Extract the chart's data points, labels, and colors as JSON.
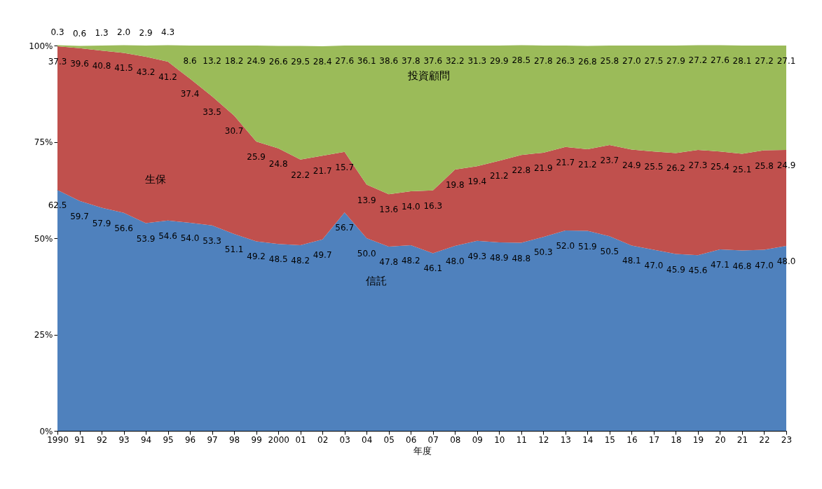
{
  "chart_data": {
    "type": "area",
    "stacked": true,
    "xlabel": "年度",
    "categories": [
      "1990",
      "91",
      "92",
      "93",
      "94",
      "95",
      "96",
      "97",
      "98",
      "99",
      "2000",
      "01",
      "02",
      "03",
      "04",
      "05",
      "06",
      "07",
      "08",
      "09",
      "10",
      "11",
      "12",
      "13",
      "14",
      "15",
      "16",
      "17",
      "18",
      "19",
      "20",
      "21",
      "22",
      "23"
    ],
    "series": [
      {
        "name": "信託",
        "color": "#4f81bd",
        "values": [
          62.5,
          59.7,
          57.9,
          56.6,
          53.9,
          54.6,
          54.0,
          53.3,
          51.1,
          49.2,
          48.5,
          48.2,
          49.7,
          56.7,
          50.0,
          47.8,
          48.2,
          46.1,
          48.0,
          49.3,
          48.9,
          48.8,
          50.3,
          52.0,
          51.9,
          50.5,
          48.1,
          47.0,
          45.9,
          45.6,
          47.1,
          46.8,
          47.0,
          48.0
        ],
        "value_labels": [
          "62.5",
          "59.7",
          "57.9",
          "56.6",
          "53.9",
          "54.6",
          "54.0",
          "53.3",
          "51.1",
          "49.2",
          "48.5",
          "48.2",
          "49.7",
          "56.7",
          "50.0",
          "47.8",
          "48.2",
          "46.1",
          "48.0",
          "49.3",
          "48.9",
          "48.8",
          "50.3",
          "52.0",
          "51.9",
          "50.5",
          "48.1",
          "47.0",
          "45.9",
          "45.6",
          "47.1",
          "46.8",
          "47.0",
          "48.0"
        ]
      },
      {
        "name": "生保",
        "color": "#c0504d",
        "values": [
          37.3,
          39.6,
          40.8,
          41.5,
          43.2,
          41.2,
          37.4,
          33.5,
          30.7,
          25.9,
          24.8,
          22.2,
          21.7,
          15.7,
          13.9,
          13.6,
          14.0,
          16.3,
          19.8,
          19.4,
          21.2,
          22.8,
          21.9,
          21.7,
          21.2,
          23.7,
          24.9,
          25.5,
          26.2,
          27.3,
          25.4,
          25.1,
          25.8,
          24.9
        ],
        "value_labels": [
          "37.3",
          "39.6",
          "40.8",
          "41.5",
          "43.2",
          "41.2",
          "37.4",
          "33.5",
          "30.7",
          "25.9",
          "24.8",
          "22.2",
          "21.7",
          "15.7",
          "13.9",
          "13.6",
          "14.0",
          "16.3",
          "19.8",
          "19.4",
          "21.2",
          "22.8",
          "21.9",
          "21.7",
          "21.2",
          "23.7",
          "24.9",
          "25.5",
          "26.2",
          "27.3",
          "25.4",
          "25.1",
          "25.8",
          "24.9"
        ]
      },
      {
        "name": "投資顧問",
        "color": "#9bbb59",
        "values": [
          0.3,
          0.6,
          1.3,
          2.0,
          2.9,
          4.3,
          8.6,
          13.2,
          18.2,
          24.9,
          26.6,
          29.5,
          28.4,
          27.6,
          36.1,
          38.6,
          37.8,
          37.6,
          32.2,
          31.3,
          29.9,
          28.5,
          27.8,
          26.3,
          26.8,
          25.8,
          27.0,
          27.5,
          27.9,
          27.2,
          27.6,
          28.1,
          27.2,
          27.1
        ],
        "value_labels": [
          "0.3",
          "0.6",
          "1.3",
          "2.0",
          "2.9",
          "4.3",
          "8.6",
          "13.2",
          "18.2",
          "24.9",
          "26.6",
          "29.5",
          "28.4",
          "27.6",
          "36.1",
          "38.6",
          "37.8",
          "37.6",
          "32.2",
          "31.3",
          "29.9",
          "28.5",
          "27.8",
          "26.3",
          "26.8",
          "25.8",
          "27.0",
          "27.5",
          "27.9",
          "27.2",
          "27.6",
          "28.1",
          "27.2",
          "27.1"
        ]
      }
    ],
    "ylim": [
      0,
      100
    ],
    "yticks": [
      {
        "value": 0,
        "label": "0%"
      },
      {
        "value": 25,
        "label": "25%"
      },
      {
        "value": 50,
        "label": "50%"
      },
      {
        "value": 75,
        "label": "75%"
      },
      {
        "value": 100,
        "label": "100%"
      }
    ],
    "grid": false,
    "legend": false
  }
}
